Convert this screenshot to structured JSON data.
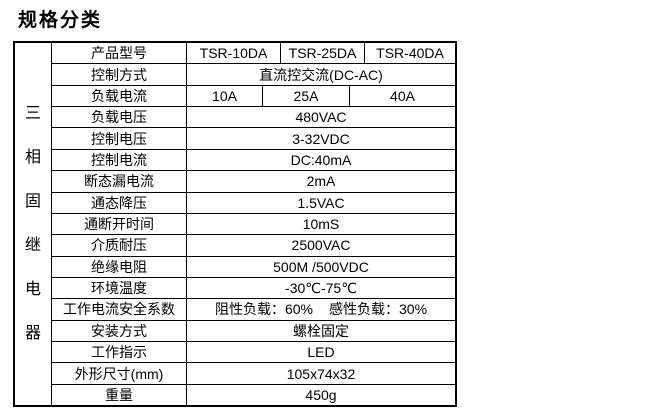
{
  "page": {
    "title": "规格分类"
  },
  "table": {
    "vertical_header": [
      "三",
      "相",
      "固",
      "继",
      "电",
      "器"
    ],
    "rows": [
      {
        "label": "产品型号",
        "cells": [
          "TSR-10DA",
          "TSR-25DA",
          "TSR-40DA"
        ]
      },
      {
        "label": "控制方式",
        "cells": [
          "直流控交流(DC-AC)"
        ]
      },
      {
        "label": "负载电流",
        "cells": [
          "10A",
          "25A",
          "40A"
        ]
      },
      {
        "label": "负载电压",
        "cells": [
          "480VAC"
        ]
      },
      {
        "label": "控制电压",
        "cells": [
          "3-32VDC"
        ]
      },
      {
        "label": "控制电流",
        "cells": [
          "DC:40mA"
        ]
      },
      {
        "label": "断态漏电流",
        "cells": [
          "2mA"
        ]
      },
      {
        "label": "通态降压",
        "cells": [
          "1.5VAC"
        ]
      },
      {
        "label": "通断开时间",
        "cells": [
          "10mS"
        ]
      },
      {
        "label": "介质耐压",
        "cells": [
          "2500VAC"
        ]
      },
      {
        "label": "绝缘电阻",
        "cells": [
          "500M /500VDC"
        ]
      },
      {
        "label": "环境温度",
        "cells": [
          "-30℃-75℃"
        ]
      },
      {
        "label": "工作电流安全系数",
        "cells": [
          "阻性负载：60%",
          "感性负载：30%"
        ]
      },
      {
        "label": "安装方式",
        "cells": [
          "螺栓固定"
        ]
      },
      {
        "label": "工作指示",
        "cells": [
          "LED"
        ]
      },
      {
        "label": "外形尺寸(mm)",
        "cells": [
          "105x74x32"
        ]
      },
      {
        "label": "重量",
        "cells": [
          "450g"
        ]
      }
    ],
    "colors": {
      "border": "#000000",
      "text": "#000000",
      "background": "#ffffff"
    }
  }
}
